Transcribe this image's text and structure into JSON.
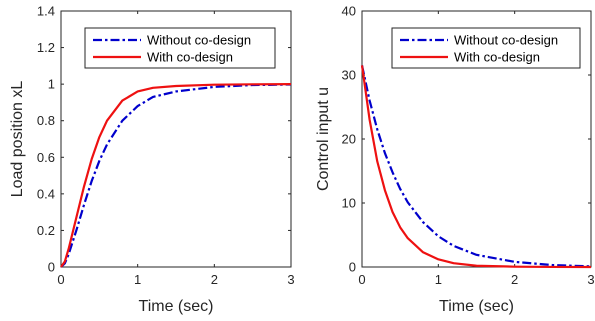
{
  "chart_data": [
    {
      "type": "line",
      "xlabel": "Time (sec)",
      "ylabel": "Load position xL",
      "xlim": [
        0,
        3
      ],
      "ylim": [
        0,
        1.4
      ],
      "xticks": [
        0,
        1,
        2,
        3
      ],
      "xtick_labels": [
        "0",
        "1",
        "2",
        "3"
      ],
      "yticks": [
        0,
        0.2,
        0.4,
        0.6,
        0.8,
        1,
        1.2,
        1.4
      ],
      "ytick_labels": [
        "0",
        "0.2",
        "0.4",
        "0.6",
        "0.8",
        "1",
        "1.2",
        "1.4"
      ],
      "grid": false,
      "legend_position": "top-right",
      "x": [
        0,
        0.05,
        0.1,
        0.2,
        0.3,
        0.4,
        0.5,
        0.6,
        0.8,
        1.0,
        1.2,
        1.5,
        2.0,
        2.5,
        3.0
      ],
      "series": [
        {
          "name": "Without co-design",
          "color": "#0000cc",
          "style": "dash-dot",
          "values": [
            0,
            0.02,
            0.07,
            0.2,
            0.34,
            0.47,
            0.58,
            0.67,
            0.8,
            0.88,
            0.93,
            0.96,
            0.985,
            0.995,
            0.998
          ]
        },
        {
          "name": "With co-design",
          "color": "#ee1111",
          "style": "solid",
          "values": [
            0,
            0.03,
            0.1,
            0.27,
            0.44,
            0.59,
            0.71,
            0.8,
            0.91,
            0.96,
            0.98,
            0.99,
            0.997,
            0.999,
            1.0
          ]
        }
      ]
    },
    {
      "type": "line",
      "xlabel": "Time (sec)",
      "ylabel": "Control input u",
      "xlim": [
        0,
        3
      ],
      "ylim": [
        0,
        40
      ],
      "xticks": [
        0,
        1,
        2,
        3
      ],
      "xtick_labels": [
        "0",
        "1",
        "2",
        "3"
      ],
      "yticks": [
        0,
        10,
        20,
        30,
        40
      ],
      "ytick_labels": [
        "0",
        "10",
        "20",
        "30",
        "40"
      ],
      "grid": false,
      "legend_position": "top-right",
      "x": [
        0,
        0.1,
        0.2,
        0.3,
        0.4,
        0.5,
        0.6,
        0.8,
        1.0,
        1.2,
        1.5,
        2.0,
        2.5,
        3.0
      ],
      "series": [
        {
          "name": "Without co-design",
          "color": "#0000cc",
          "style": "dash-dot",
          "values": [
            31.5,
            26,
            21.5,
            17.8,
            14.8,
            12.2,
            10.1,
            7.0,
            4.8,
            3.3,
            1.9,
            0.8,
            0.3,
            0.1
          ]
        },
        {
          "name": "With co-design",
          "color": "#ee1111",
          "style": "solid",
          "values": [
            31.5,
            23,
            16.5,
            12,
            8.6,
            6.2,
            4.5,
            2.3,
            1.2,
            0.6,
            0.2,
            0.05,
            0.01,
            0
          ]
        }
      ]
    }
  ]
}
